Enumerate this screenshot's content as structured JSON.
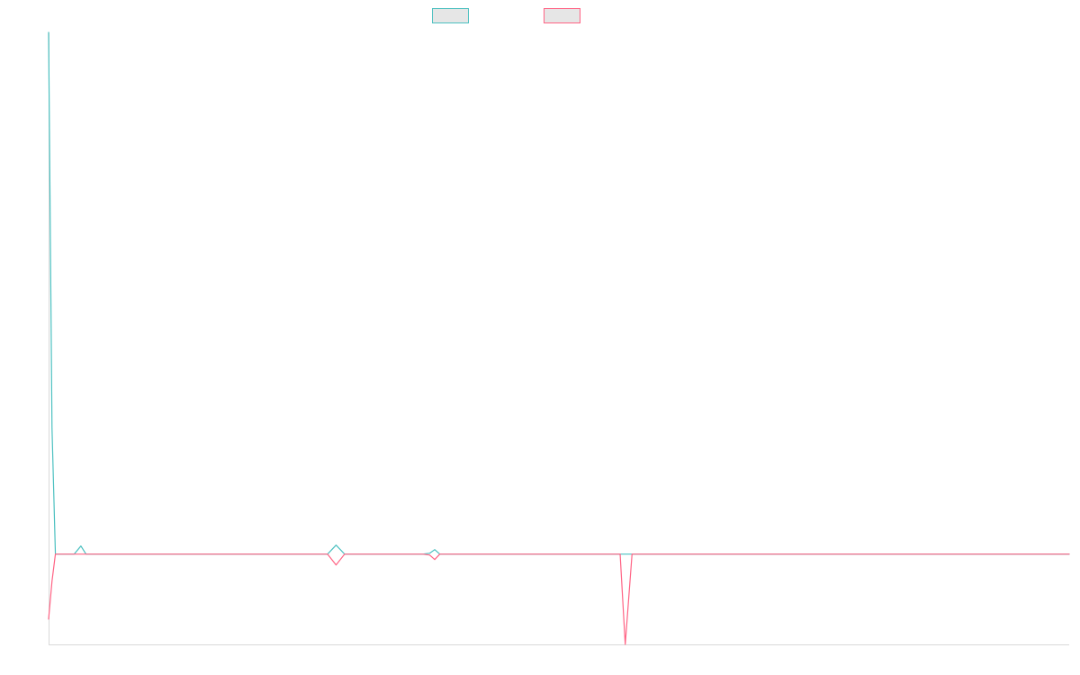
{
  "chart_data": {
    "type": "line",
    "title": "",
    "xlabel": "",
    "ylabel": "",
    "grid": false,
    "legend": {
      "placement": "top-center",
      "entries": [
        {
          "name": "",
          "color": "#4BC0C0",
          "fill": "#E6E6E6"
        },
        {
          "name": "",
          "color": "#FF6384",
          "fill": "#E6E6E6"
        }
      ]
    },
    "x": [
      0,
      0.03,
      0.06,
      0.09,
      0.12,
      0.15,
      0.18,
      0.21,
      0.24,
      0.27,
      0.3,
      0.33,
      0.36,
      0.39,
      0.42,
      0.45,
      0.48,
      0.51,
      0.54,
      0.57,
      0.6,
      0.63,
      0.66,
      0.69,
      0.72,
      0.75,
      0.78,
      0.81,
      0.84,
      0.87,
      0.9,
      0.93,
      0.96,
      1.0
    ],
    "series": [
      {
        "color": "#4BC0C0",
        "points": [
          [
            0,
            578
          ],
          [
            4,
            140
          ],
          [
            8,
            0
          ],
          [
            30,
            0
          ],
          [
            38,
            9
          ],
          [
            44,
            0
          ],
          [
            54,
            0
          ],
          [
            300,
            0
          ],
          [
            328,
            0
          ],
          [
            338,
            10
          ],
          [
            348,
            0
          ],
          [
            360,
            0
          ],
          [
            440,
            0
          ],
          [
            448,
            1
          ],
          [
            454,
            5
          ],
          [
            460,
            0
          ],
          [
            664,
            0
          ],
          [
            680,
            0
          ],
          [
            686,
            0
          ],
          [
            1200,
            0
          ]
        ]
      },
      {
        "color": "#FF6384",
        "points": [
          [
            0,
            -72
          ],
          [
            4,
            -30
          ],
          [
            8,
            0
          ],
          [
            30,
            0
          ],
          [
            54,
            0
          ],
          [
            300,
            0
          ],
          [
            328,
            0
          ],
          [
            338,
            -12
          ],
          [
            348,
            0
          ],
          [
            360,
            0
          ],
          [
            440,
            0
          ],
          [
            448,
            -1
          ],
          [
            454,
            -6
          ],
          [
            460,
            0
          ],
          [
            664,
            0
          ],
          [
            672,
            0
          ],
          [
            678,
            -100
          ],
          [
            686,
            0
          ],
          [
            1200,
            0
          ]
        ]
      }
    ],
    "xlim": [
      0,
      1200
    ],
    "ylim": [
      -100,
      578
    ]
  }
}
